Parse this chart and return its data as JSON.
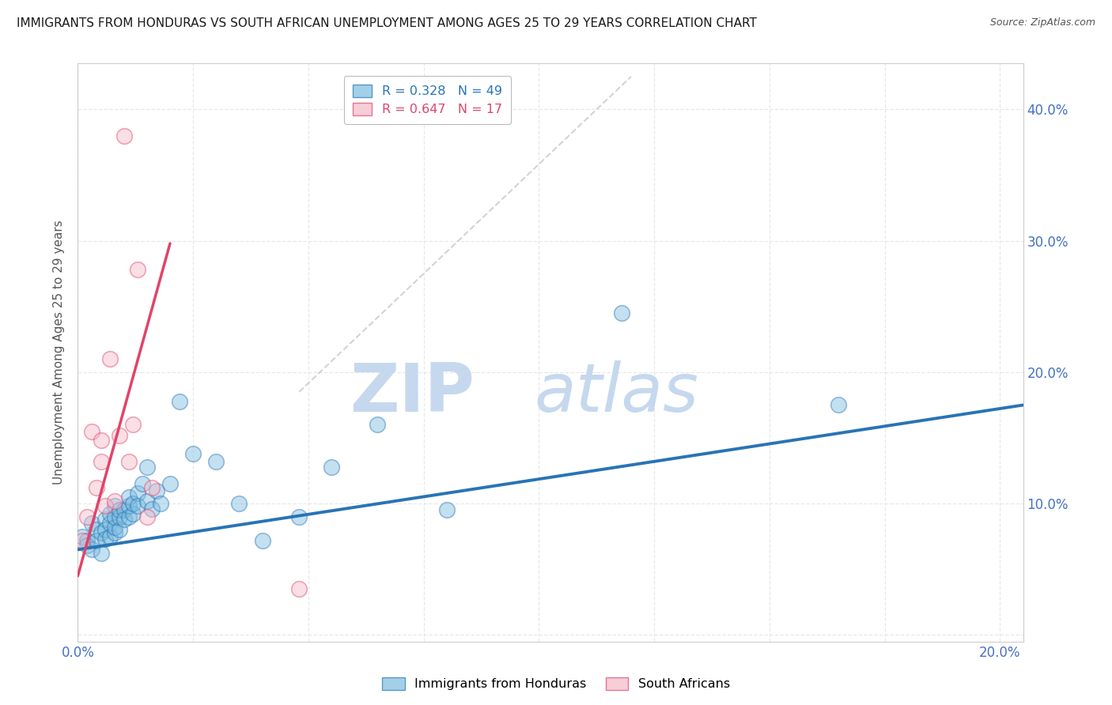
{
  "title": "IMMIGRANTS FROM HONDURAS VS SOUTH AFRICAN UNEMPLOYMENT AMONG AGES 25 TO 29 YEARS CORRELATION CHART",
  "source": "Source: ZipAtlas.com",
  "ylabel": "Unemployment Among Ages 25 to 29 years",
  "xlim": [
    0.0,
    0.205
  ],
  "ylim": [
    -0.005,
    0.435
  ],
  "x_ticks": [
    0.0,
    0.025,
    0.05,
    0.075,
    0.1,
    0.125,
    0.15,
    0.175,
    0.2
  ],
  "y_ticks": [
    0.0,
    0.1,
    0.2,
    0.3,
    0.4
  ],
  "x_tick_labels": [
    "0.0%",
    "",
    "",
    "",
    "",
    "",
    "",
    "",
    "20.0%"
  ],
  "y_tick_labels_right": [
    "",
    "10.0%",
    "20.0%",
    "30.0%",
    "40.0%"
  ],
  "blue_color": "#7bbce0",
  "pink_color": "#f5b8c8",
  "blue_line_color": "#2874b5",
  "pink_line_color": "#e0446a",
  "dashed_line_color": "#c8c8c8",
  "legend_R_blue": "R = 0.328",
  "legend_N_blue": "N = 49",
  "legend_R_pink": "R = 0.647",
  "legend_N_pink": "N = 17",
  "blue_scatter_x": [
    0.001,
    0.002,
    0.002,
    0.003,
    0.003,
    0.004,
    0.004,
    0.005,
    0.005,
    0.006,
    0.006,
    0.006,
    0.007,
    0.007,
    0.007,
    0.008,
    0.008,
    0.008,
    0.008,
    0.009,
    0.009,
    0.009,
    0.01,
    0.01,
    0.011,
    0.011,
    0.011,
    0.012,
    0.012,
    0.013,
    0.013,
    0.014,
    0.015,
    0.015,
    0.016,
    0.017,
    0.018,
    0.02,
    0.022,
    0.025,
    0.03,
    0.035,
    0.04,
    0.048,
    0.055,
    0.065,
    0.08,
    0.118,
    0.165
  ],
  "blue_scatter_y": [
    0.075,
    0.072,
    0.068,
    0.065,
    0.085,
    0.08,
    0.072,
    0.062,
    0.078,
    0.088,
    0.08,
    0.073,
    0.075,
    0.085,
    0.092,
    0.078,
    0.082,
    0.09,
    0.098,
    0.08,
    0.09,
    0.095,
    0.095,
    0.088,
    0.09,
    0.098,
    0.105,
    0.092,
    0.1,
    0.108,
    0.098,
    0.115,
    0.128,
    0.102,
    0.096,
    0.11,
    0.1,
    0.115,
    0.178,
    0.138,
    0.132,
    0.1,
    0.072,
    0.09,
    0.128,
    0.16,
    0.095,
    0.245,
    0.175
  ],
  "pink_scatter_x": [
    0.001,
    0.002,
    0.003,
    0.004,
    0.005,
    0.005,
    0.006,
    0.007,
    0.008,
    0.009,
    0.01,
    0.011,
    0.012,
    0.013,
    0.015,
    0.016,
    0.048
  ],
  "pink_scatter_y": [
    0.072,
    0.09,
    0.155,
    0.112,
    0.132,
    0.148,
    0.098,
    0.21,
    0.102,
    0.152,
    0.38,
    0.132,
    0.16,
    0.278,
    0.09,
    0.112,
    0.035
  ],
  "blue_line_x": [
    0.0,
    0.205
  ],
  "blue_line_y": [
    0.065,
    0.175
  ],
  "pink_line_x": [
    0.0,
    0.02
  ],
  "pink_line_y": [
    0.045,
    0.298
  ],
  "dashed_line_x": [
    0.048,
    0.12
  ],
  "dashed_line_y": [
    0.185,
    0.425
  ],
  "watermark_zip": "ZIP",
  "watermark_atlas": "atlas",
  "background_color": "#ffffff",
  "grid_color": "#e8e8e8",
  "grid_style": "--"
}
